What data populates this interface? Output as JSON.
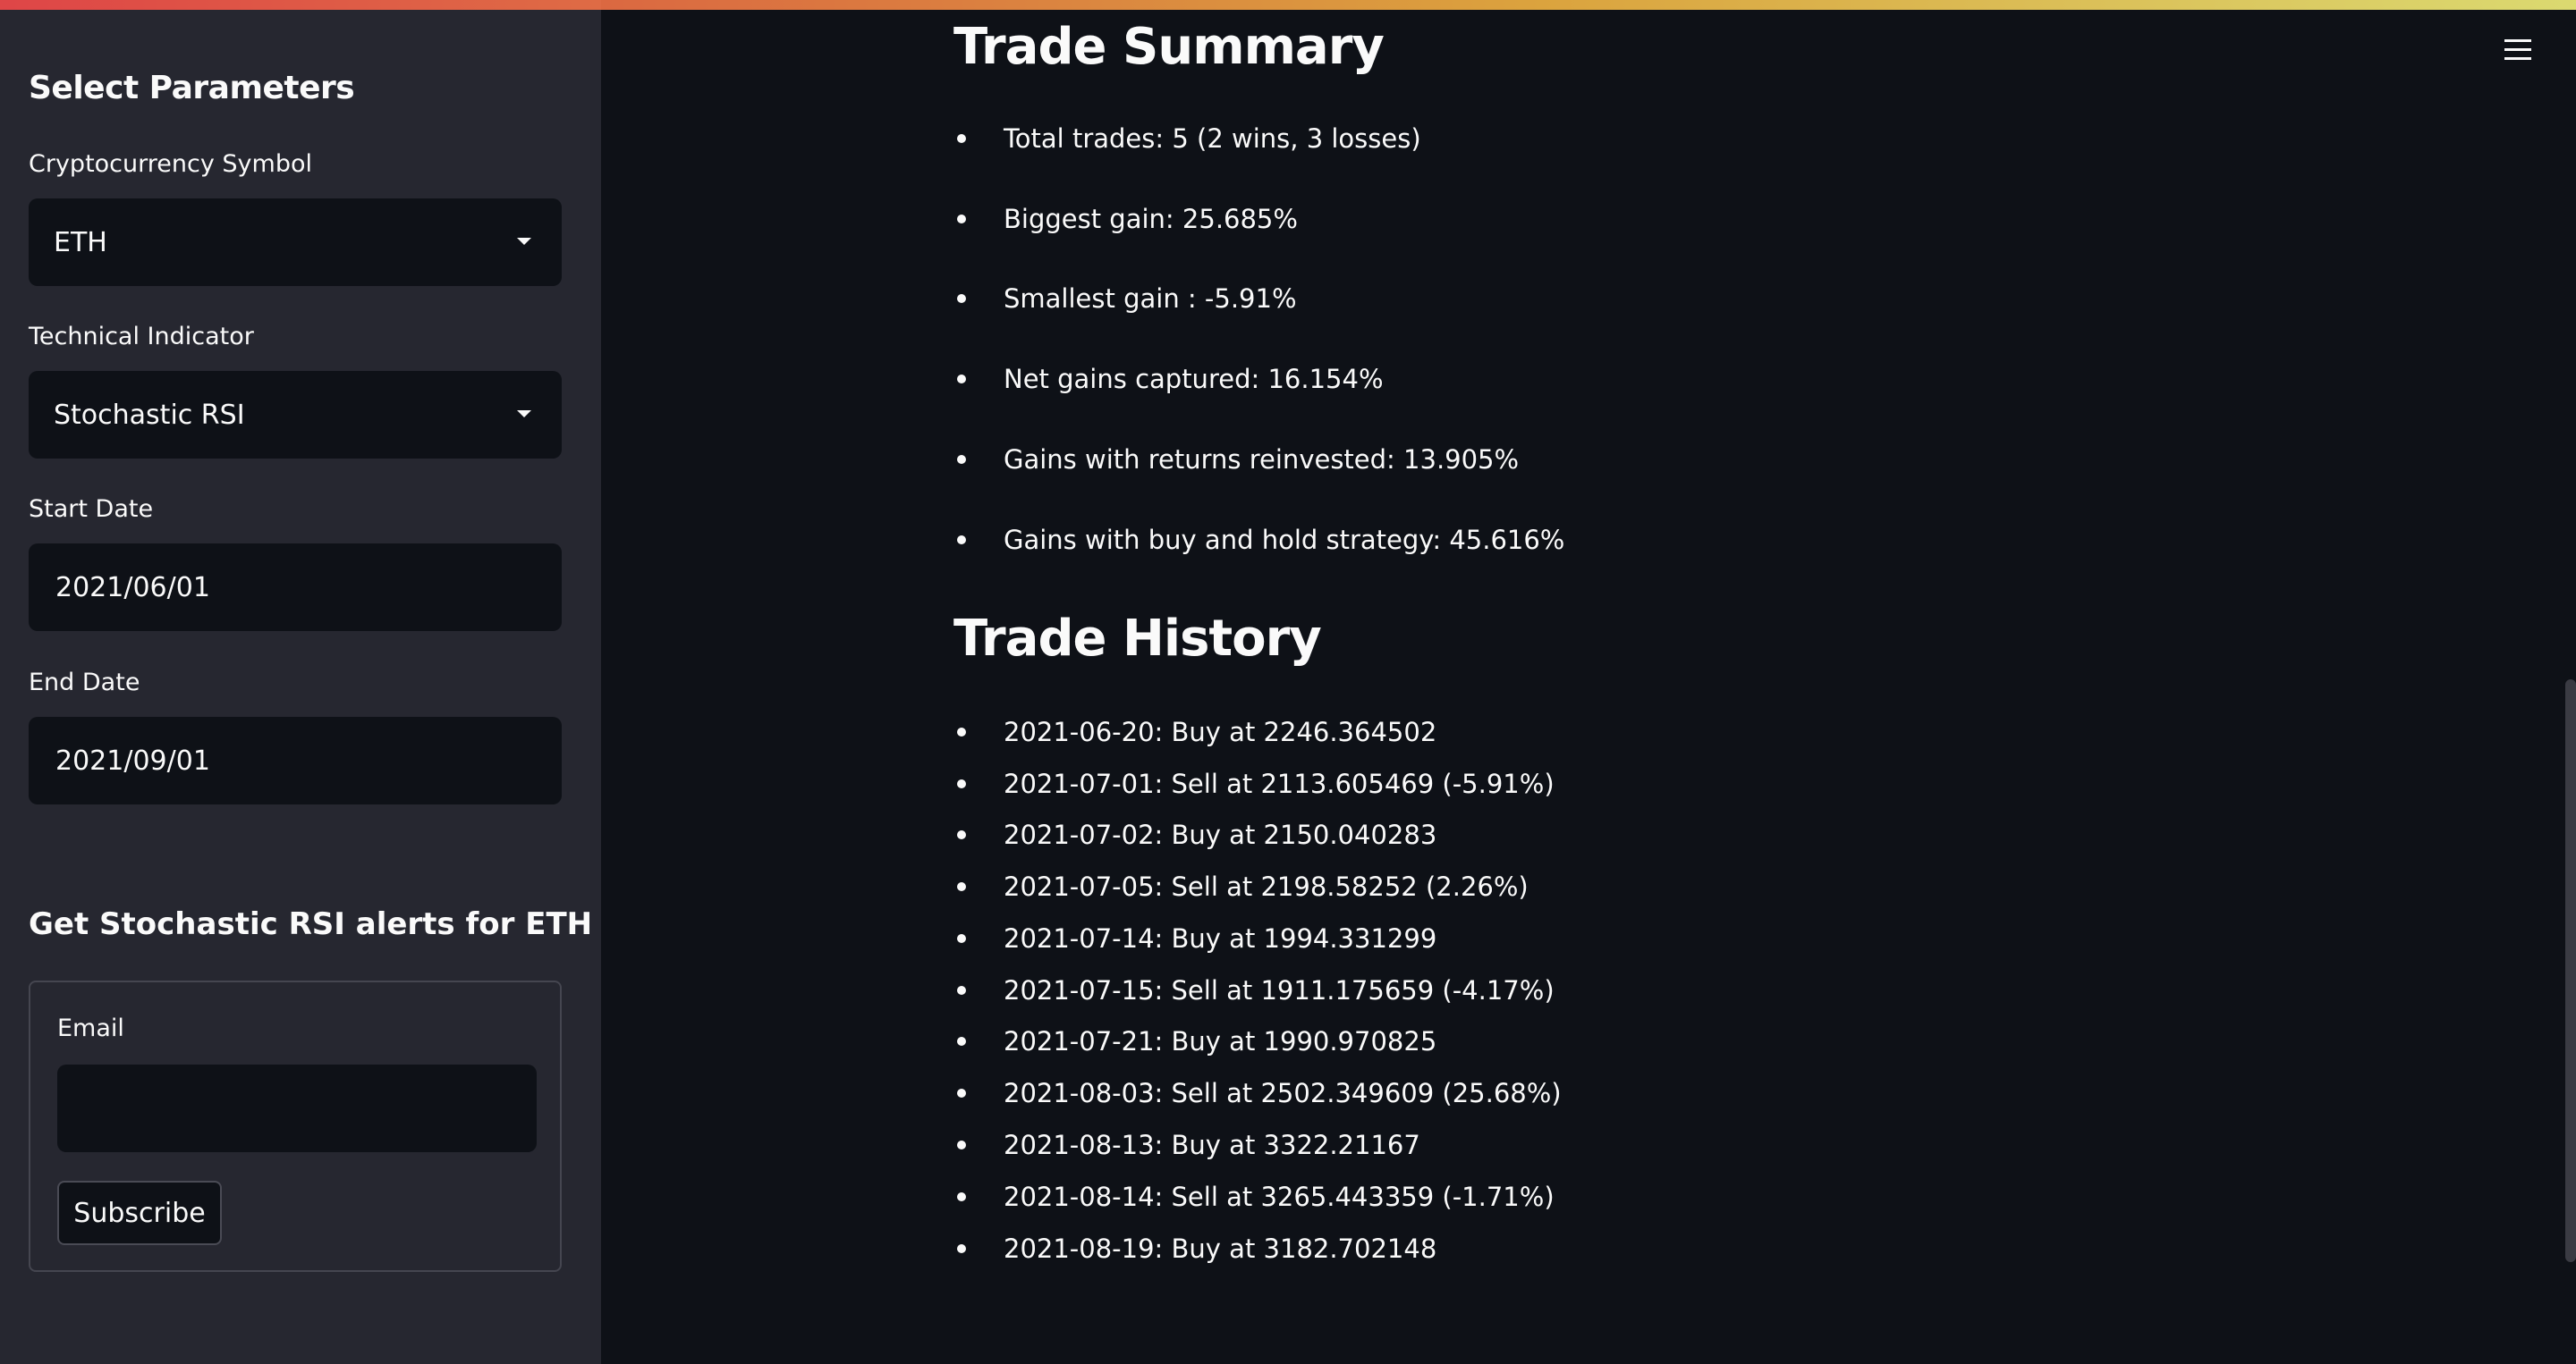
{
  "sidebar": {
    "title": "Select Parameters",
    "crypto_label": "Cryptocurrency Symbol",
    "crypto_value": "ETH",
    "indicator_label": "Technical Indicator",
    "indicator_value": "Stochastic RSI",
    "start_label": "Start Date",
    "start_value": "2021/06/01",
    "end_label": "End Date",
    "end_value": "2021/09/01",
    "alerts_title": "Get Stochastic RSI alerts for ETH",
    "email_label": "Email",
    "email_value": "",
    "subscribe_label": "Subscribe"
  },
  "main": {
    "summary_title": "Trade Summary",
    "summary_items": [
      "Total trades: 5 (2 wins, 3 losses)",
      "Biggest gain: 25.685%",
      "Smallest gain : -5.91%",
      "Net gains captured: 16.154%",
      "Gains with returns reinvested: 13.905%",
      "Gains with buy and hold strategy: 45.616%"
    ],
    "history_title": "Trade History",
    "history_items": [
      "2021-06-20: Buy at 2246.364502",
      "2021-07-01: Sell at 2113.605469 (-5.91%)",
      "2021-07-02: Buy at 2150.040283",
      "2021-07-05: Sell at 2198.58252 (2.26%)",
      "2021-07-14: Buy at 1994.331299",
      "2021-07-15: Sell at 1911.175659 (-4.17%)",
      "2021-07-21: Buy at 1990.970825",
      "2021-08-03: Sell at 2502.349609 (25.68%)",
      "2021-08-13: Buy at 3322.21167",
      "2021-08-14: Sell at 3265.443359 (-1.71%)",
      "2021-08-19: Buy at 3182.702148"
    ]
  },
  "icons": {
    "menu": "hamburger-menu-icon",
    "dropdown": "chevron-down-icon"
  },
  "colors": {
    "background": "#0e1117",
    "sidebar": "#262730",
    "text": "#fafafa"
  }
}
